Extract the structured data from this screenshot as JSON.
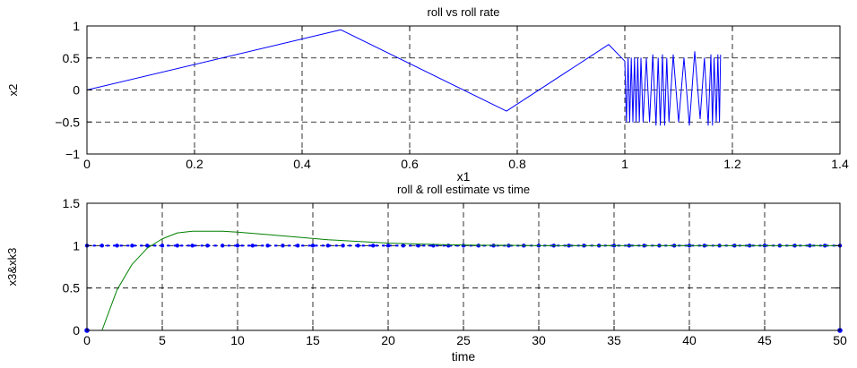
{
  "chart_data": [
    {
      "type": "line",
      "title": "roll vs roll rate",
      "xlabel": "x1",
      "ylabel": "x2",
      "xlim": [
        0,
        1.4
      ],
      "ylim": [
        -1,
        1
      ],
      "xticks": [
        0,
        0.2,
        0.4,
        0.6,
        0.8,
        1,
        1.2,
        1.4
      ],
      "yticks": [
        -1,
        -0.5,
        0,
        0.5,
        1
      ],
      "xtick_labels": [
        "0",
        "0.2",
        "0.4",
        "0.6",
        "0.8",
        "1",
        "1.2",
        "1.4"
      ],
      "ytick_labels": [
        "−1",
        "−0.5",
        "0",
        "0.5",
        "1"
      ],
      "grid": true,
      "series": [
        {
          "color": "#0000ff",
          "x": [
            0,
            0.472,
            0.78,
            0.97,
            1.0,
            1.003,
            1.006,
            1.009,
            1.012,
            1.015,
            1.018,
            1.021,
            1.024,
            1.027,
            1.03,
            1.034,
            1.04,
            1.046,
            1.052,
            1.058,
            1.062,
            1.066,
            1.07,
            1.074,
            1.078,
            1.082,
            1.09,
            1.1,
            1.11,
            1.12,
            1.13,
            1.14,
            1.148,
            1.155,
            1.16,
            1.163,
            1.166,
            1.17,
            1.173,
            1.176,
            1.178
          ],
          "y": [
            0,
            0.94,
            -0.33,
            0.71,
            0.45,
            -0.5,
            0.5,
            -0.5,
            0.5,
            -0.5,
            0.5,
            -0.5,
            0.5,
            -0.5,
            0.5,
            -0.5,
            0.5,
            -0.5,
            0.55,
            -0.55,
            0.5,
            -0.55,
            0.55,
            -0.55,
            0.5,
            -0.5,
            0.55,
            -0.5,
            0.5,
            -0.55,
            0.6,
            -0.45,
            0.5,
            -0.55,
            0.55,
            -0.55,
            0.5,
            -0.5,
            0.55,
            -0.5,
            0.55
          ]
        }
      ]
    },
    {
      "type": "line",
      "title": "roll & roll estimate vs time",
      "xlabel": "time",
      "ylabel": "x3&xk3",
      "xlim": [
        0,
        50
      ],
      "ylim": [
        0,
        1.5
      ],
      "xticks": [
        0,
        5,
        10,
        15,
        20,
        25,
        30,
        35,
        40,
        45,
        50
      ],
      "yticks": [
        0,
        0.5,
        1,
        1.5
      ],
      "xtick_labels": [
        "0",
        "5",
        "10",
        "15",
        "20",
        "25",
        "30",
        "35",
        "40",
        "45",
        "50"
      ],
      "ytick_labels": [
        "0",
        "0.5",
        "1",
        "1.5"
      ],
      "grid": true,
      "series": [
        {
          "color": "#0000ff",
          "style": "dotted-markers",
          "x": [
            0,
            1,
            2,
            3,
            4,
            5,
            6,
            7,
            8,
            9,
            10,
            11,
            12,
            13,
            14,
            15,
            16,
            17,
            18,
            19,
            20,
            21,
            22,
            23,
            24,
            25,
            26,
            27,
            28,
            29,
            30,
            31,
            32,
            33,
            34,
            35,
            36,
            37,
            38,
            39,
            40,
            41,
            42,
            43,
            44,
            45,
            46,
            47,
            48,
            49,
            50
          ],
          "y": [
            1,
            1,
            1,
            1,
            1,
            1,
            1,
            1,
            1,
            1,
            1,
            1,
            1,
            1,
            1,
            1,
            1,
            1,
            1,
            1,
            1,
            1,
            1,
            1,
            1,
            1,
            1,
            1,
            1,
            1,
            1,
            1,
            1,
            1,
            1,
            1,
            1,
            1,
            1,
            1,
            1,
            1,
            1,
            1,
            1,
            1,
            1,
            1,
            1,
            1,
            1
          ],
          "end_markers": [
            {
              "x": 0,
              "y": 0
            },
            {
              "x": 50,
              "y": 0
            }
          ]
        },
        {
          "color": "#008000",
          "style": "solid",
          "x": [
            0,
            1,
            2,
            3,
            4,
            5,
            6,
            7,
            8,
            9,
            10,
            12,
            14,
            16,
            18,
            20,
            22,
            24,
            26,
            28,
            30,
            35,
            40,
            45,
            50
          ],
          "y": [
            0,
            0,
            0.48,
            0.78,
            0.97,
            1.08,
            1.15,
            1.17,
            1.17,
            1.17,
            1.16,
            1.13,
            1.1,
            1.07,
            1.05,
            1.03,
            1.02,
            1.01,
            1.005,
            1.003,
            1.0,
            1.0,
            1.0,
            1.0,
            1.0
          ]
        }
      ]
    }
  ]
}
